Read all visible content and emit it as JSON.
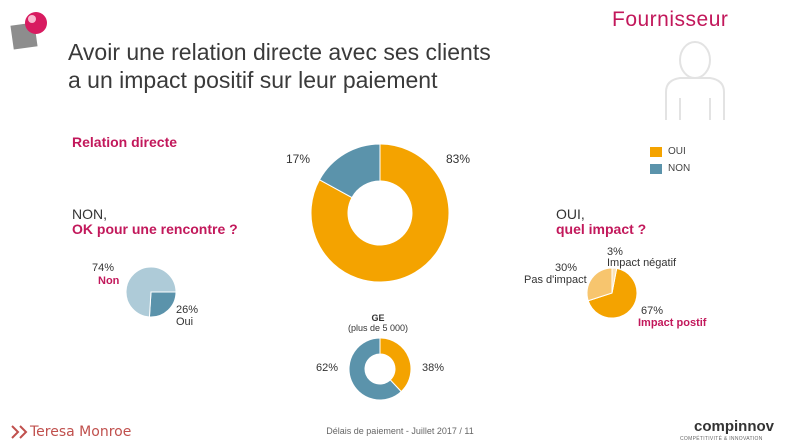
{
  "slide": {
    "title_line1": "Avoir une relation directe avec ses clients",
    "title_line2": "a un impact positif sur leur paiement",
    "persona_label": "Fournisseur",
    "footer": "Délais de paiement - Juillet 2017 / 11",
    "brand_left": "Teresa Monroe",
    "brand_right": "compinnov",
    "brand_right_sub": "COMPÉTITIVITÉ & INNOVATION"
  },
  "sections": {
    "relation_title": "Relation directe",
    "non_prefix": "NON,",
    "non_question": "OK pour une rencontre ?",
    "oui_prefix": "OUI,",
    "oui_question": "quel impact ?",
    "ge_title": "GE",
    "ge_subtitle": "(plus de 5 000)"
  },
  "legend": [
    {
      "label": "OUI",
      "color": "#f4a300"
    },
    {
      "label": "NON",
      "color": "#5b93ab"
    }
  ],
  "labels": {
    "main_oui": "83%",
    "main_non": "17%",
    "left_non_pct": "74%",
    "left_non_label": "Non",
    "left_oui_pct": "26%",
    "left_oui_label": "Oui",
    "right_neg_pct": "3%",
    "right_neg_label": "Impact négatif",
    "right_pas_pct": "30%",
    "right_pas_label": "Pas d'impact",
    "right_pos_pct": "67%",
    "right_pos_label": "Impact postif",
    "ge_non_pct": "62%",
    "ge_oui_pct": "38%"
  },
  "chart_data": [
    {
      "type": "pie",
      "variant": "donut",
      "title": "Relation directe",
      "categories": [
        "OUI",
        "NON"
      ],
      "values": [
        83,
        17
      ],
      "colors": [
        "#f4a300",
        "#5b93ab"
      ]
    },
    {
      "type": "pie",
      "title": "NON, OK pour une rencontre ?",
      "categories": [
        "Non",
        "Oui"
      ],
      "values": [
        74,
        26
      ],
      "colors": [
        "#aecbd8",
        "#5b93ab"
      ]
    },
    {
      "type": "pie",
      "title": "OUI, quel impact ?",
      "categories": [
        "Impact postif",
        "Pas d'impact",
        "Impact négatif"
      ],
      "values": [
        67,
        30,
        3
      ],
      "colors": [
        "#f4a300",
        "#f7c56e",
        "#fbe3b7"
      ]
    },
    {
      "type": "pie",
      "variant": "donut",
      "title": "GE (plus de 5 000)",
      "categories": [
        "OUI",
        "NON"
      ],
      "values": [
        38,
        62
      ],
      "colors": [
        "#f4a300",
        "#5b93ab"
      ]
    }
  ]
}
